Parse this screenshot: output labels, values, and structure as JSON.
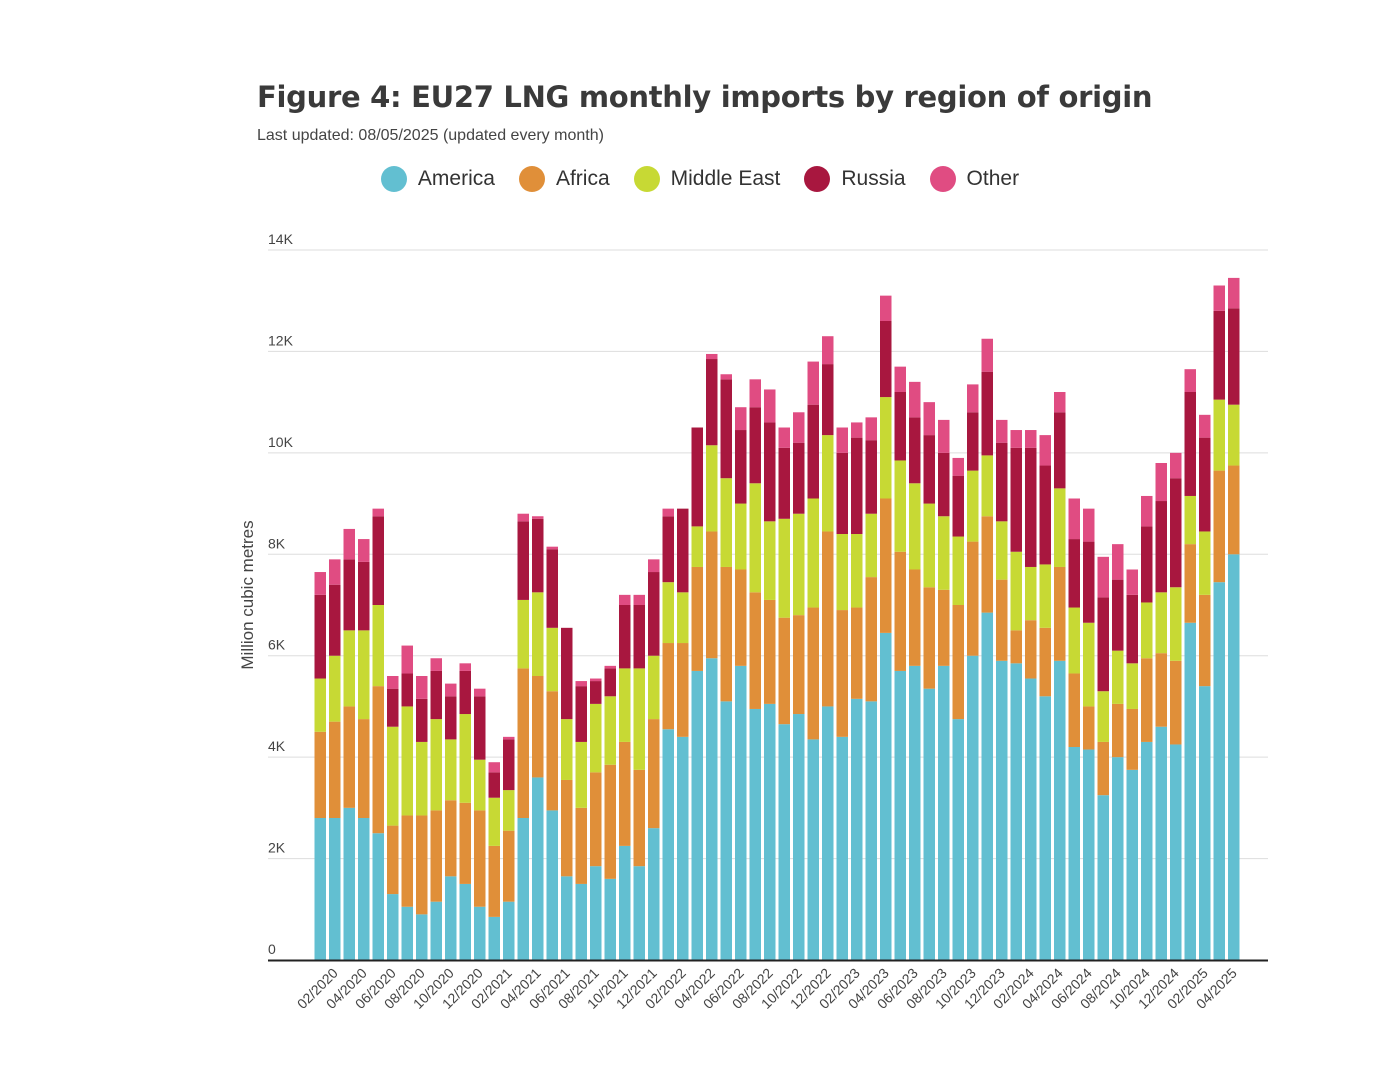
{
  "chart_data": {
    "type": "bar",
    "stacked": true,
    "title": "Figure 4: EU27 LNG monthly imports by region of origin",
    "subtitle": "Last updated: 08/05/2025 (updated every month)",
    "xlabel": "",
    "ylabel": "Million cubic metres",
    "ylim": [
      0,
      14000
    ],
    "yticks": [
      {
        "value": 0,
        "label": "0"
      },
      {
        "value": 2000,
        "label": "2K"
      },
      {
        "value": 4000,
        "label": "4K"
      },
      {
        "value": 6000,
        "label": "6K"
      },
      {
        "value": 8000,
        "label": "8K"
      },
      {
        "value": 10000,
        "label": "10K"
      },
      {
        "value": 12000,
        "label": "12K"
      },
      {
        "value": 14000,
        "label": "14K"
      }
    ],
    "grid": true,
    "legend_position": "top-center",
    "categories": [
      "01/2020",
      "02/2020",
      "03/2020",
      "04/2020",
      "05/2020",
      "06/2020",
      "07/2020",
      "08/2020",
      "09/2020",
      "10/2020",
      "11/2020",
      "12/2020",
      "01/2021",
      "02/2021",
      "03/2021",
      "04/2021",
      "05/2021",
      "06/2021",
      "07/2021",
      "08/2021",
      "09/2021",
      "10/2021",
      "11/2021",
      "12/2021",
      "01/2022",
      "02/2022",
      "03/2022",
      "04/2022",
      "05/2022",
      "06/2022",
      "07/2022",
      "08/2022",
      "09/2022",
      "10/2022",
      "11/2022",
      "12/2022",
      "01/2023",
      "02/2023",
      "03/2023",
      "04/2023",
      "05/2023",
      "06/2023",
      "07/2023",
      "08/2023",
      "09/2023",
      "10/2023",
      "11/2023",
      "12/2023",
      "01/2024",
      "02/2024",
      "03/2024",
      "04/2024",
      "05/2024",
      "06/2024",
      "07/2024",
      "08/2024",
      "09/2024",
      "10/2024",
      "11/2024",
      "12/2024",
      "01/2025",
      "02/2025",
      "03/2025",
      "04/2025"
    ],
    "tick_labels": [
      "02/2020",
      "04/2020",
      "06/2020",
      "08/2020",
      "10/2020",
      "12/2020",
      "02/2021",
      "04/2021",
      "06/2021",
      "08/2021",
      "10/2021",
      "12/2021",
      "02/2022",
      "04/2022",
      "06/2022",
      "08/2022",
      "10/2022",
      "12/2022",
      "02/2023",
      "04/2023",
      "06/2023",
      "08/2023",
      "10/2023",
      "12/2023",
      "02/2024",
      "04/2024",
      "06/2024",
      "08/2024",
      "10/2024",
      "12/2024",
      "02/2025",
      "04/2025"
    ],
    "series": [
      {
        "name": "America",
        "color": "#62bfd1",
        "values": [
          2800,
          2800,
          3000,
          2800,
          2500,
          1300,
          1050,
          900,
          1150,
          1650,
          1500,
          1050,
          850,
          1150,
          2800,
          3600,
          2950,
          1650,
          1500,
          1850,
          1600,
          2250,
          1850,
          2600,
          4550,
          4400,
          5700,
          5950,
          5100,
          5800,
          4950,
          5050,
          4650,
          4850,
          4350,
          5000,
          4400,
          5150,
          5100,
          6450,
          5700,
          5800,
          5350,
          5800,
          4750,
          6000,
          6850,
          5900,
          5850,
          5550,
          5200,
          5900,
          4200,
          4150,
          3250,
          4000,
          3750,
          4300,
          4600,
          4250,
          6650,
          5400,
          7450,
          8000
        ]
      },
      {
        "name": "Africa",
        "color": "#e08f39",
        "values": [
          1700,
          1900,
          2000,
          1950,
          2900,
          1350,
          1800,
          1950,
          1800,
          1500,
          1600,
          1900,
          1400,
          1400,
          2950,
          2000,
          2350,
          1900,
          1500,
          1850,
          2250,
          2050,
          1900,
          2150,
          1700,
          1850,
          2050,
          2500,
          2650,
          1900,
          2300,
          2050,
          2100,
          1950,
          2600,
          3450,
          2500,
          1800,
          2450,
          2650,
          2350,
          1900,
          2000,
          1500,
          2250,
          2250,
          1900,
          1600,
          650,
          1150,
          1350,
          1850,
          1450,
          850,
          1050,
          1050,
          1200,
          1650,
          1450,
          1650,
          1550,
          1800,
          2200,
          1750
        ]
      },
      {
        "name": "Middle East",
        "color": "#c7d934",
        "values": [
          1050,
          1300,
          1500,
          1750,
          1600,
          1950,
          2150,
          1450,
          1800,
          1200,
          1750,
          1000,
          950,
          800,
          1350,
          1650,
          1250,
          1200,
          1300,
          1350,
          1350,
          1450,
          2000,
          1250,
          1200,
          1000,
          800,
          1700,
          1750,
          1300,
          2150,
          1550,
          1950,
          2000,
          2150,
          1900,
          1500,
          1450,
          1250,
          2000,
          1800,
          1700,
          1650,
          1450,
          1350,
          1400,
          1200,
          1150,
          1550,
          1050,
          1250,
          1550,
          1300,
          1650,
          1000,
          1050,
          900,
          1100,
          1200,
          1450,
          950,
          1250,
          1400,
          1200
        ]
      },
      {
        "name": "Russia",
        "color": "#a8173f",
        "values": [
          1650,
          1400,
          1400,
          1350,
          1750,
          750,
          650,
          850,
          950,
          850,
          850,
          1250,
          500,
          1000,
          1550,
          1450,
          1550,
          1800,
          1100,
          450,
          550,
          1250,
          1250,
          1650,
          1300,
          1650,
          1950,
          1700,
          1950,
          1450,
          1500,
          1950,
          1400,
          1400,
          1850,
          1400,
          1600,
          1900,
          1450,
          1500,
          1350,
          1300,
          1350,
          1250,
          1200,
          1150,
          1650,
          1550,
          2050,
          2350,
          1950,
          1500,
          1350,
          1600,
          1850,
          1400,
          1350,
          1500,
          1800,
          2150,
          2050,
          1850,
          1750,
          1900
        ]
      },
      {
        "name": "Other",
        "color": "#e04c82",
        "values": [
          450,
          500,
          600,
          450,
          150,
          250,
          550,
          450,
          250,
          250,
          150,
          150,
          200,
          50,
          150,
          50,
          50,
          0,
          100,
          50,
          50,
          200,
          200,
          250,
          150,
          0,
          0,
          100,
          100,
          450,
          550,
          650,
          400,
          600,
          850,
          550,
          500,
          300,
          450,
          500,
          500,
          700,
          650,
          650,
          350,
          550,
          650,
          450,
          350,
          350,
          600,
          400,
          800,
          650,
          800,
          700,
          500,
          600,
          750,
          500,
          450,
          450,
          500,
          600
        ]
      }
    ]
  }
}
